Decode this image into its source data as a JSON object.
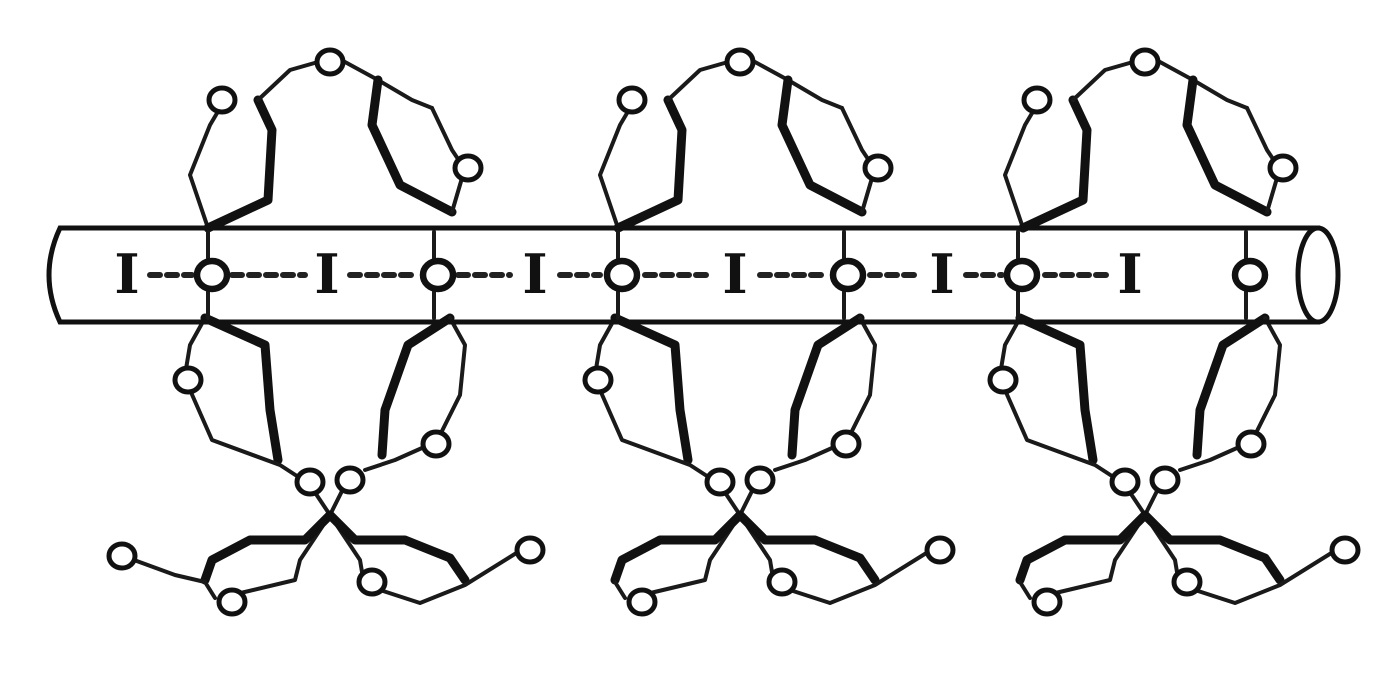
{
  "figure": {
    "iodine_label": "I",
    "iodine_count": 6,
    "ring_count": 3,
    "colors": {
      "line": "#111111",
      "background": "#ffffff"
    }
  }
}
